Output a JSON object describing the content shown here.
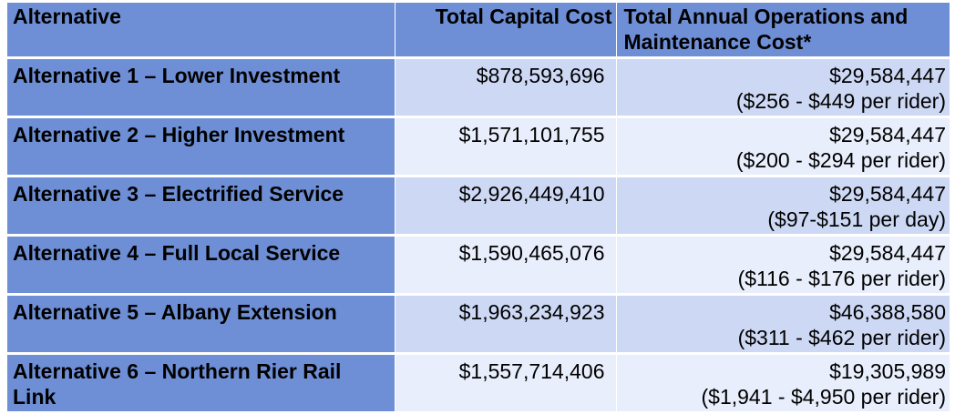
{
  "table": {
    "headers": {
      "alternative": "Alternative",
      "capital": "Total Capital Cost",
      "om": "Total Annual Operations and Maintenance Cost*"
    },
    "rows": [
      {
        "alternative": "Alternative 1 – Lower Investment",
        "capital": "$878,593,696",
        "om_cost": "$29,584,447",
        "om_detail": "($256 - $449 per rider)"
      },
      {
        "alternative": "Alternative 2 – Higher Investment",
        "capital": "$1,571,101,755",
        "om_cost": "$29,584,447",
        "om_detail": "($200 - $294 per rider)"
      },
      {
        "alternative": "Alternative 3 – Electrified Service",
        "capital": "$2,926,449,410",
        "om_cost": "$29,584,447",
        "om_detail": "($97-$151 per day)"
      },
      {
        "alternative": "Alternative 4 – Full Local Service",
        "capital": "$1,590,465,076",
        "om_cost": "$29,584,447",
        "om_detail": "($116 - $176 per rider)"
      },
      {
        "alternative": "Alternative 5 – Albany Extension",
        "capital": "$1,963,234,923",
        "om_cost": "$46,388,580",
        "om_detail": "($311 - $462 per rider)"
      },
      {
        "alternative": "Alternative 6 – Northern Rier Rail Link",
        "capital": "$1,557,714,406",
        "om_cost": "$19,305,989",
        "om_detail": "($1,941 - $4,950 per rider)"
      }
    ]
  }
}
